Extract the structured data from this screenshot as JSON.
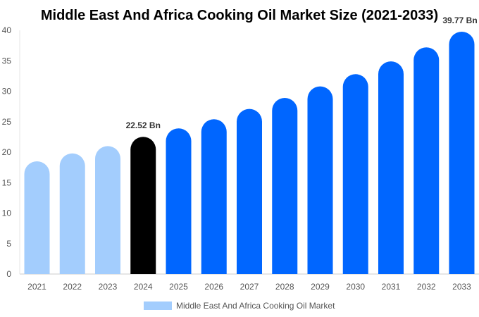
{
  "chart_data": {
    "type": "bar",
    "title": "Middle East And Africa Cooking Oil Market Size (2021-2033)",
    "categories": [
      "2021",
      "2022",
      "2023",
      "2024",
      "2025",
      "2026",
      "2027",
      "2028",
      "2029",
      "2030",
      "2031",
      "2032",
      "2033"
    ],
    "series": [
      {
        "name": "Middle East And Africa Cooking Oil Market",
        "values": [
          18.5,
          19.8,
          21.0,
          22.52,
          23.9,
          25.4,
          27.1,
          28.9,
          30.8,
          32.8,
          34.9,
          37.2,
          39.77
        ]
      }
    ],
    "data_labels": [
      {
        "category": "2024",
        "text": "22.52 Bn"
      },
      {
        "category": "2033",
        "text": "39.77 Bn"
      }
    ],
    "ylim": [
      0,
      40
    ],
    "yticks": [
      0,
      5,
      10,
      15,
      20,
      25,
      30,
      35,
      40
    ],
    "grid": false,
    "legend_position": "bottom",
    "colors": {
      "historical": "#a3cdfd",
      "base_year": "#000000",
      "forecast": "#0066ff"
    },
    "xlabel": "",
    "ylabel": ""
  }
}
